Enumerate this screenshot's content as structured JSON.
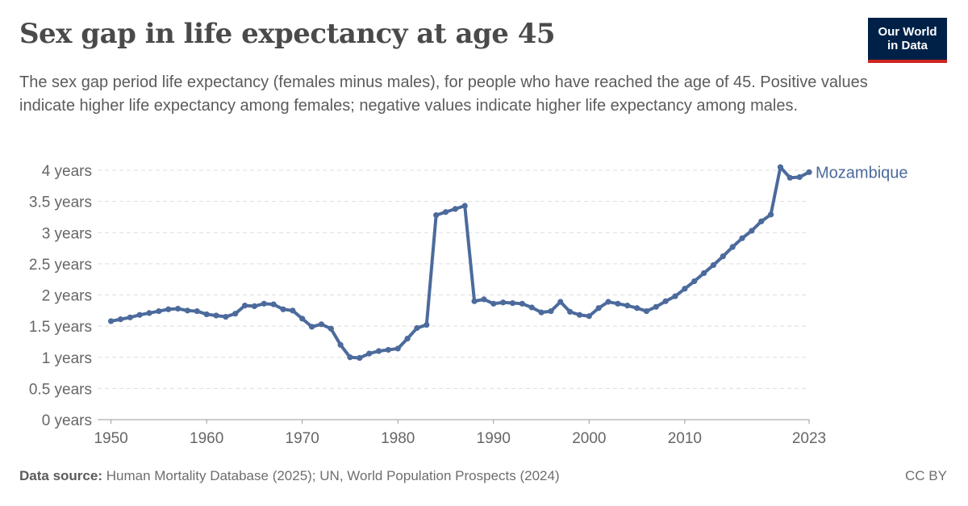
{
  "header": {
    "title": "Sex gap in life expectancy at age 45",
    "subtitle": "The sex gap period life expectancy (females minus males), for people who have reached the age of 45. Positive values indicate higher life expectancy among females; negative values indicate higher life expectancy among males."
  },
  "logo": {
    "line1": "Our World",
    "line2": "in Data"
  },
  "footer": {
    "source_label": "Data source:",
    "source_text": "Human Mortality Database (2025); UN, World Population Prospects (2024)",
    "license": "CC BY"
  },
  "colors": {
    "series": "#4c6a9c",
    "grid": "#dddddd",
    "axis_text": "#666666"
  },
  "chart_data": {
    "type": "line",
    "title": "Sex gap in life expectancy at age 45",
    "ylim": [
      0,
      4
    ],
    "xlim": [
      1950,
      2023
    ],
    "y_ticks": [
      {
        "value": 0,
        "label": "0 years"
      },
      {
        "value": 0.5,
        "label": "0.5 years"
      },
      {
        "value": 1,
        "label": "1 years"
      },
      {
        "value": 1.5,
        "label": "1.5 years"
      },
      {
        "value": 2,
        "label": "2 years"
      },
      {
        "value": 2.5,
        "label": "2.5 years"
      },
      {
        "value": 3,
        "label": "3 years"
      },
      {
        "value": 3.5,
        "label": "3.5 years"
      },
      {
        "value": 4,
        "label": "4 years"
      }
    ],
    "x_ticks": [
      {
        "value": 1950,
        "label": "1950"
      },
      {
        "value": 1960,
        "label": "1960"
      },
      {
        "value": 1970,
        "label": "1970"
      },
      {
        "value": 1980,
        "label": "1980"
      },
      {
        "value": 1990,
        "label": "1990"
      },
      {
        "value": 2000,
        "label": "2000"
      },
      {
        "value": 2010,
        "label": "2010"
      },
      {
        "value": 2023,
        "label": "2023"
      }
    ],
    "grid": true,
    "series": [
      {
        "name": "Mozambique",
        "x": [
          1950,
          1951,
          1952,
          1953,
          1954,
          1955,
          1956,
          1957,
          1958,
          1959,
          1960,
          1961,
          1962,
          1963,
          1964,
          1965,
          1966,
          1967,
          1968,
          1969,
          1970,
          1971,
          1972,
          1973,
          1974,
          1975,
          1976,
          1977,
          1978,
          1979,
          1980,
          1981,
          1982,
          1983,
          1984,
          1985,
          1986,
          1987,
          1988,
          1989,
          1990,
          1991,
          1992,
          1993,
          1994,
          1995,
          1996,
          1997,
          1998,
          1999,
          2000,
          2001,
          2002,
          2003,
          2004,
          2005,
          2006,
          2007,
          2008,
          2009,
          2010,
          2011,
          2012,
          2013,
          2014,
          2015,
          2016,
          2017,
          2018,
          2019,
          2020,
          2021,
          2022,
          2023
        ],
        "values": [
          1.58,
          1.61,
          1.64,
          1.68,
          1.71,
          1.74,
          1.77,
          1.78,
          1.75,
          1.74,
          1.69,
          1.67,
          1.65,
          1.7,
          1.83,
          1.82,
          1.86,
          1.85,
          1.77,
          1.75,
          1.62,
          1.49,
          1.53,
          1.46,
          1.2,
          1.0,
          0.99,
          1.06,
          1.1,
          1.12,
          1.14,
          1.3,
          1.47,
          1.52,
          3.28,
          3.33,
          3.38,
          3.43,
          1.9,
          1.93,
          1.86,
          1.88,
          1.87,
          1.86,
          1.8,
          1.72,
          1.74,
          1.89,
          1.73,
          1.68,
          1.66,
          1.79,
          1.89,
          1.86,
          1.83,
          1.79,
          1.74,
          1.81,
          1.9,
          1.98,
          2.1,
          2.22,
          2.35,
          2.48,
          2.62,
          2.77,
          2.91,
          3.03,
          3.18,
          3.29,
          4.05,
          3.88,
          3.89,
          3.97
        ]
      }
    ]
  }
}
